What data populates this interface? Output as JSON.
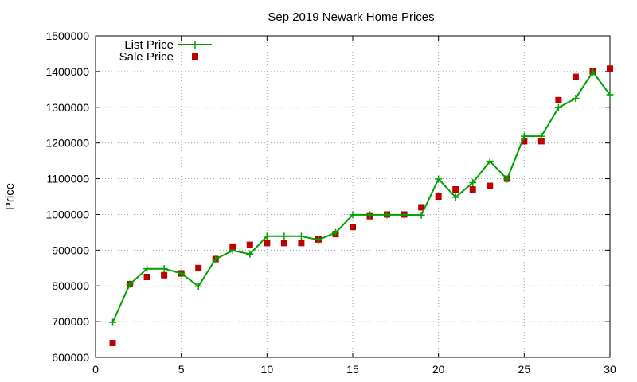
{
  "chart_data": {
    "type": "line",
    "title": "Sep 2019 Newark Home Prices",
    "xlabel": "",
    "ylabel": "Price",
    "xlim": [
      0,
      30
    ],
    "ylim": [
      600000,
      1500000
    ],
    "xticks": [
      0,
      5,
      10,
      15,
      20,
      25,
      30
    ],
    "yticks": [
      600000,
      700000,
      800000,
      900000,
      1000000,
      1100000,
      1200000,
      1300000,
      1400000,
      1500000
    ],
    "grid": true,
    "legend_position": "top-left",
    "x": [
      1,
      2,
      3,
      4,
      5,
      6,
      7,
      8,
      9,
      10,
      11,
      12,
      13,
      14,
      15,
      16,
      17,
      18,
      19,
      20,
      21,
      22,
      23,
      24,
      25,
      26,
      27,
      28,
      29,
      30
    ],
    "series": [
      {
        "name": "List Price",
        "style": "line-points",
        "color": "#00a000",
        "values": [
          698000,
          805000,
          848000,
          848000,
          835000,
          799000,
          875000,
          899000,
          889000,
          939000,
          939000,
          939000,
          929000,
          949000,
          999000,
          999000,
          999000,
          999000,
          998000,
          1099000,
          1048000,
          1089000,
          1149000,
          1099000,
          1219000,
          1219000,
          1299000,
          1325000,
          1399000,
          1335000
        ]
      },
      {
        "name": "Sale Price",
        "style": "points",
        "color": "#c00000",
        "values": [
          640000,
          805000,
          825000,
          830000,
          835000,
          850000,
          875000,
          910000,
          915000,
          920000,
          920000,
          920000,
          930000,
          945000,
          965000,
          995000,
          1000000,
          1000000,
          1020000,
          1050000,
          1070000,
          1070000,
          1080000,
          1100000,
          1205000,
          1205000,
          1320000,
          1385000,
          1400000,
          1408000
        ]
      }
    ]
  }
}
